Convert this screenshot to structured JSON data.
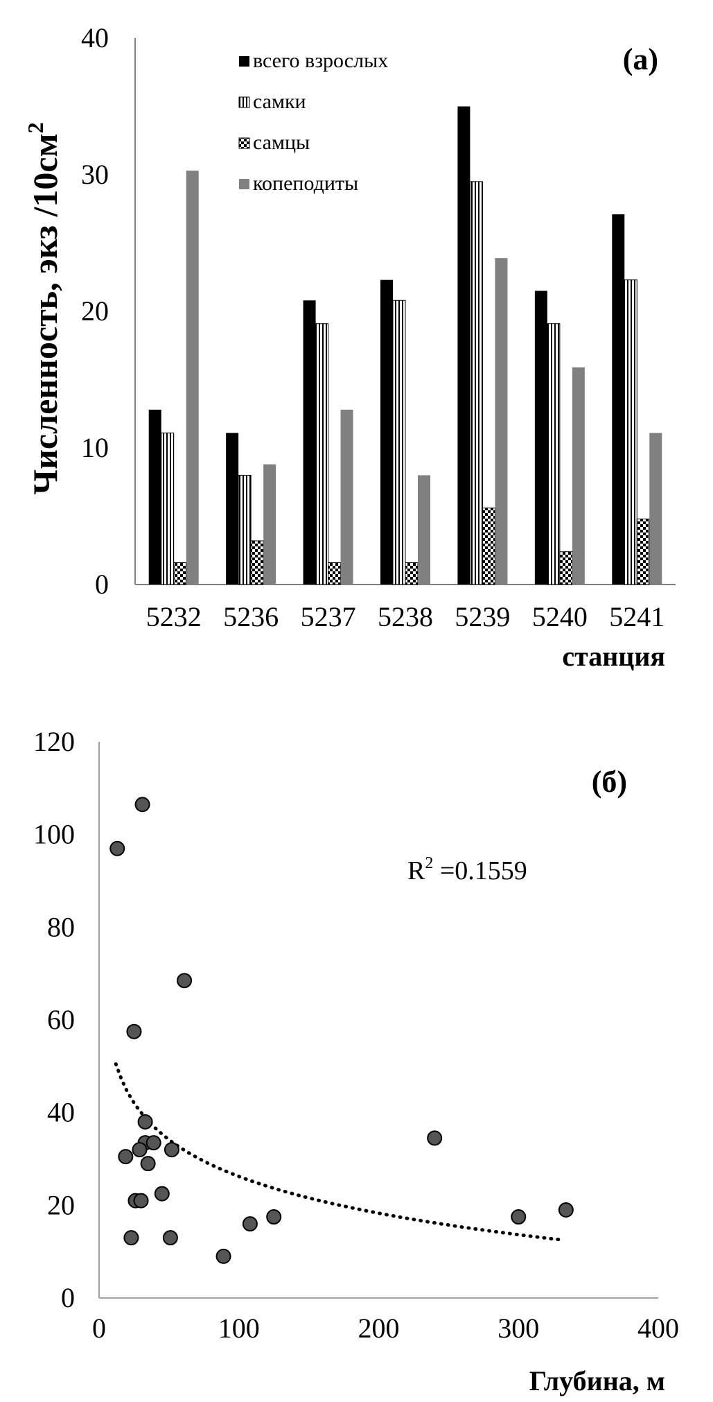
{
  "chart_data": [
    {
      "type": "bar",
      "panel_label": "(а)",
      "title": "",
      "ylabel": "Численность, экз /10см",
      "ylabel_sup": "2",
      "xlabel": "станция",
      "ylim": [
        0,
        40
      ],
      "yticks": [
        0,
        10,
        20,
        30,
        40
      ],
      "categories": [
        "5232",
        "5236",
        "5237",
        "5238",
        "5239",
        "5240",
        "5241"
      ],
      "legend_position": "top-left",
      "series": [
        {
          "name": "всего взрослых",
          "pattern": "solid-black",
          "values": [
            12.8,
            11.1,
            20.8,
            22.3,
            35.0,
            21.5,
            27.1
          ]
        },
        {
          "name": "самки",
          "pattern": "vertical-stripes",
          "values": [
            11.1,
            8.0,
            19.1,
            20.8,
            29.5,
            19.1,
            22.3
          ]
        },
        {
          "name": "самцы",
          "pattern": "checker",
          "values": [
            1.6,
            3.2,
            1.6,
            1.6,
            5.6,
            2.4,
            4.8
          ]
        },
        {
          "name": "копеподиты",
          "pattern": "solid-gray",
          "values": [
            30.3,
            8.8,
            12.8,
            8.0,
            23.9,
            15.9,
            11.1
          ]
        }
      ]
    },
    {
      "type": "scatter",
      "panel_label": "(б)",
      "title": "",
      "xlabel": "Глубина, м",
      "ylabel": "",
      "xlim": [
        0,
        400
      ],
      "ylim": [
        0,
        120
      ],
      "xticks": [
        0,
        100,
        200,
        300,
        400
      ],
      "yticks": [
        0,
        20,
        40,
        60,
        80,
        100,
        120
      ],
      "point_color": "#555555",
      "annotation": {
        "text": "R",
        "sup": "2",
        "rest": " =0.1559"
      },
      "points": [
        {
          "x": 13,
          "y": 97
        },
        {
          "x": 31,
          "y": 106.5
        },
        {
          "x": 61,
          "y": 68.5
        },
        {
          "x": 25,
          "y": 57.5
        },
        {
          "x": 33,
          "y": 38
        },
        {
          "x": 33,
          "y": 33.5
        },
        {
          "x": 39,
          "y": 33.5
        },
        {
          "x": 29,
          "y": 32
        },
        {
          "x": 52,
          "y": 32
        },
        {
          "x": 19,
          "y": 30.5
        },
        {
          "x": 35,
          "y": 29
        },
        {
          "x": 45,
          "y": 22.5
        },
        {
          "x": 26,
          "y": 21
        },
        {
          "x": 30,
          "y": 21
        },
        {
          "x": 23,
          "y": 13
        },
        {
          "x": 51,
          "y": 13
        },
        {
          "x": 108,
          "y": 16
        },
        {
          "x": 125,
          "y": 17.5
        },
        {
          "x": 89,
          "y": 9
        },
        {
          "x": 240,
          "y": 34.5
        },
        {
          "x": 300,
          "y": 17.5
        },
        {
          "x": 334,
          "y": 19
        }
      ],
      "trendline": {
        "type": "log",
        "x_range": [
          12,
          332
        ],
        "y_at_start": 50.5,
        "y_at_end": 12.5,
        "style": "dotted"
      }
    }
  ]
}
